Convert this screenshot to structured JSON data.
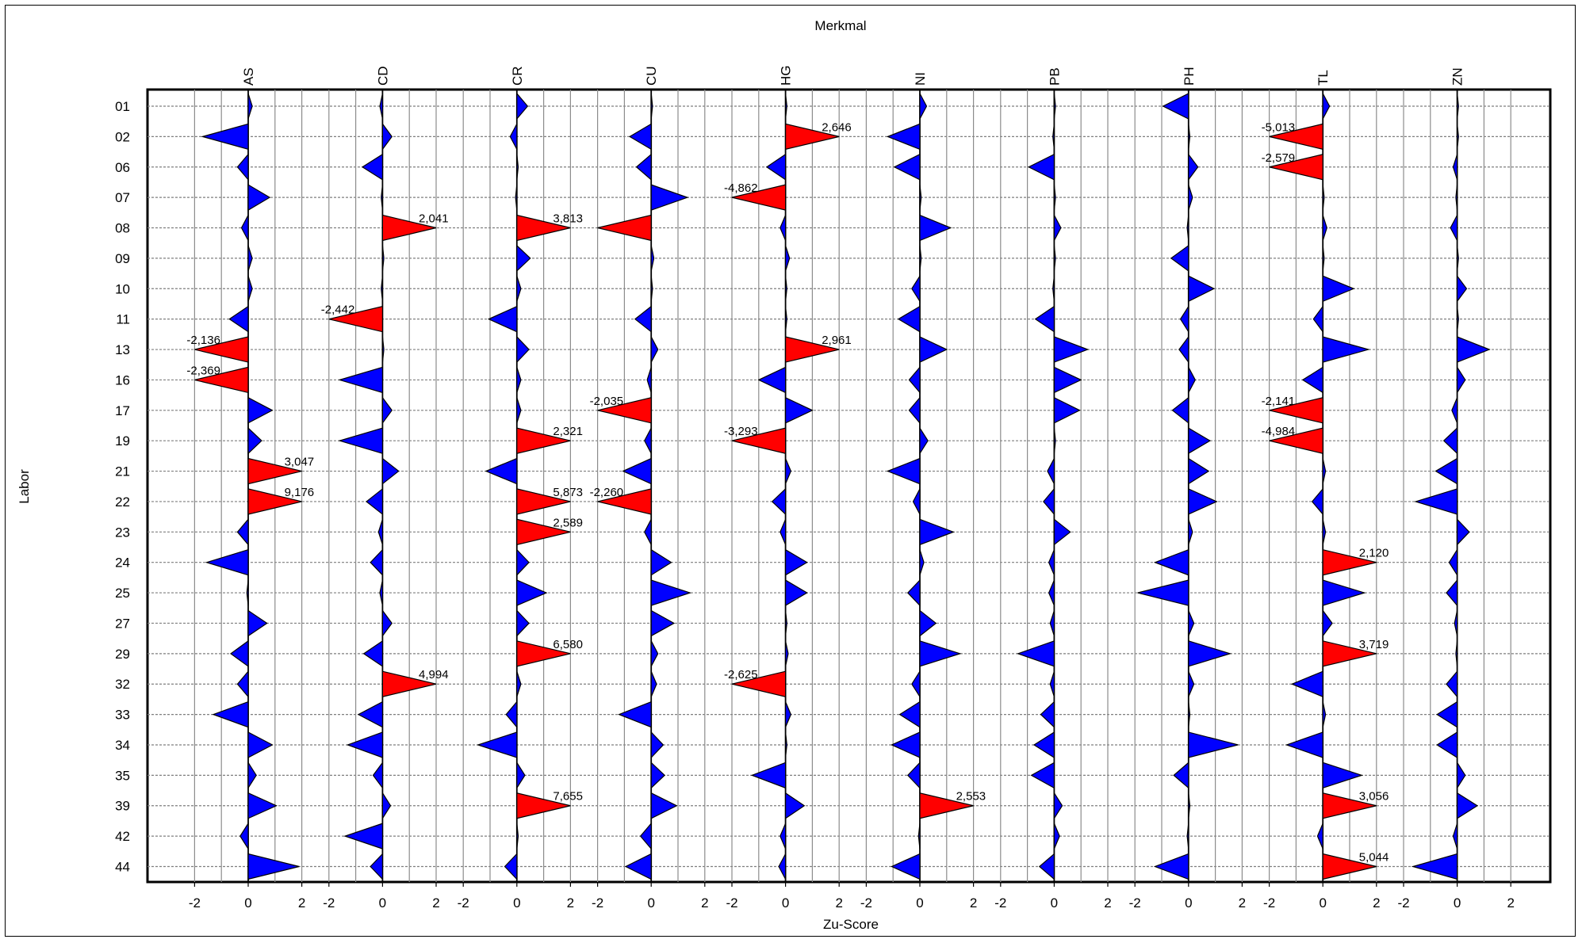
{
  "chart_data": {
    "type": "scatter",
    "title": "Merkmal",
    "xlabel": "Zu-Score",
    "ylabel": "Labor",
    "highlight_threshold": 2,
    "highlight_color": "#ff0000",
    "normal_color": "#0000ff",
    "xticks": [
      "-2",
      "0",
      "2"
    ],
    "xlim": [
      -2.5,
      2.5
    ],
    "features": [
      "AS",
      "CD",
      "CR",
      "CU",
      "HG",
      "NI",
      "PB",
      "PH",
      "TL",
      "ZN"
    ],
    "labs": [
      "01",
      "02",
      "06",
      "07",
      "08",
      "09",
      "10",
      "11",
      "13",
      "16",
      "17",
      "19",
      "21",
      "22",
      "23",
      "24",
      "25",
      "27",
      "29",
      "32",
      "33",
      "34",
      "35",
      "39",
      "42",
      "44"
    ],
    "values": {
      "AS": [
        0.15,
        -1.7,
        -0.4,
        0.8,
        -0.25,
        0.15,
        0.15,
        -0.7,
        -2.136,
        -2.369,
        0.9,
        0.5,
        3.047,
        9.176,
        -0.4,
        -1.55,
        -0.05,
        0.7,
        -0.65,
        -0.4,
        -1.3,
        0.9,
        0.3,
        1.05,
        -0.3,
        1.9
      ],
      "CD": [
        -0.1,
        0.35,
        -0.75,
        -0.05,
        2.041,
        0.05,
        -0.05,
        -2.442,
        0.05,
        -1.6,
        0.35,
        -1.6,
        0.6,
        -0.6,
        -0.15,
        -0.45,
        -0.1,
        0.35,
        -0.7,
        4.994,
        -0.9,
        -1.3,
        -0.35,
        0.3,
        -1.4,
        -0.45
      ],
      "CR": [
        0.4,
        -0.25,
        0.05,
        -0.05,
        3.813,
        0.5,
        0.15,
        -1.05,
        0.45,
        0.15,
        0.15,
        2.321,
        -1.15,
        5.873,
        2.589,
        0.45,
        1.1,
        0.45,
        6.58,
        0.15,
        -0.4,
        -1.45,
        0.3,
        7.655,
        0.05,
        -0.45
      ],
      "CU": [
        0.05,
        -0.8,
        -0.55,
        1.35,
        -2.035,
        0.1,
        0.05,
        -0.6,
        0.25,
        -0.15,
        -2.035,
        -0.25,
        -1.05,
        -2.26,
        -0.25,
        0.75,
        1.45,
        0.85,
        0.25,
        0.2,
        -1.2,
        0.45,
        0.5,
        0.95,
        -0.4,
        -0.95
      ],
      "HG": [
        0.05,
        2.646,
        -0.7,
        -4.862,
        -0.2,
        0.15,
        0.05,
        0.05,
        2.961,
        -1.0,
        1.0,
        -3.293,
        0.2,
        -0.5,
        -0.2,
        0.8,
        0.8,
        0.05,
        0.1,
        -2.625,
        0.2,
        0.05,
        -1.25,
        0.7,
        -0.2,
        -0.25
      ],
      "NI": [
        0.25,
        -1.2,
        -0.95,
        0.05,
        1.15,
        0.05,
        -0.3,
        -0.8,
        1.0,
        -0.4,
        -0.4,
        0.3,
        -1.2,
        -0.25,
        1.25,
        0.15,
        -0.45,
        0.6,
        1.5,
        -0.3,
        -0.75,
        -1.05,
        -0.45,
        2.553,
        -0.05,
        -1.05
      ],
      "PB": [
        0.05,
        -0.05,
        -0.95,
        0.05,
        0.25,
        0.05,
        -0.05,
        -0.7,
        1.25,
        1.0,
        0.95,
        0.05,
        -0.25,
        -0.4,
        0.6,
        -0.2,
        -0.2,
        -0.15,
        -1.35,
        -0.15,
        -0.5,
        -0.75,
        -0.85,
        0.3,
        0.2,
        -0.55
      ],
      "PH": [
        -0.95,
        0.05,
        0.35,
        0.15,
        -0.05,
        -0.65,
        0.95,
        -0.3,
        -0.35,
        0.25,
        -0.6,
        0.8,
        0.75,
        1.05,
        0.15,
        -1.25,
        -1.9,
        0.2,
        1.55,
        0.2,
        0.05,
        1.85,
        -0.55,
        0.05,
        -0.05,
        -1.25
      ],
      "TL": [
        0.25,
        -5.013,
        -2.579,
        0.05,
        0.15,
        0.05,
        1.15,
        -0.35,
        1.7,
        -0.75,
        -2.141,
        -4.984,
        0.1,
        -0.4,
        0.1,
        2.12,
        1.55,
        0.35,
        3.719,
        -1.15,
        0.1,
        -1.35,
        1.45,
        3.056,
        -0.2,
        5.044
      ],
      "ZN": [
        0.05,
        0.05,
        -0.15,
        -0.05,
        -0.25,
        0.05,
        0.35,
        0.05,
        1.2,
        0.3,
        -0.2,
        -0.5,
        -0.8,
        -1.55,
        0.45,
        -0.3,
        -0.4,
        -0.1,
        -0.05,
        -0.4,
        -0.75,
        -0.75,
        0.3,
        0.75,
        -0.15,
        -1.65
      ]
    },
    "data_labels": {
      "AS": {
        "13": "-2,136",
        "16": "-2,369",
        "21": "3,047",
        "22": "9,176"
      },
      "CD": {
        "08": "2,041",
        "11": "-2,442",
        "32": "4,994"
      },
      "CR": {
        "08": "3,813",
        "19": "2,321",
        "22": "5,873",
        "23": "2,589",
        "29": "6,580",
        "39": "7,655"
      },
      "CU": {
        "17": "-2,035",
        "22": "-2,260"
      },
      "HG": {
        "02": "2,646",
        "07": "-4,862",
        "13": "2,961",
        "19": "-3,293",
        "32": "-2,625"
      },
      "NI": {
        "39": "2,553"
      },
      "TL": {
        "02": "-5,013",
        "06": "-2,579",
        "17": "-2,141",
        "19": "-4,984",
        "24": "2,120",
        "29": "3,719",
        "39": "3,056",
        "44": "5,044"
      }
    }
  }
}
